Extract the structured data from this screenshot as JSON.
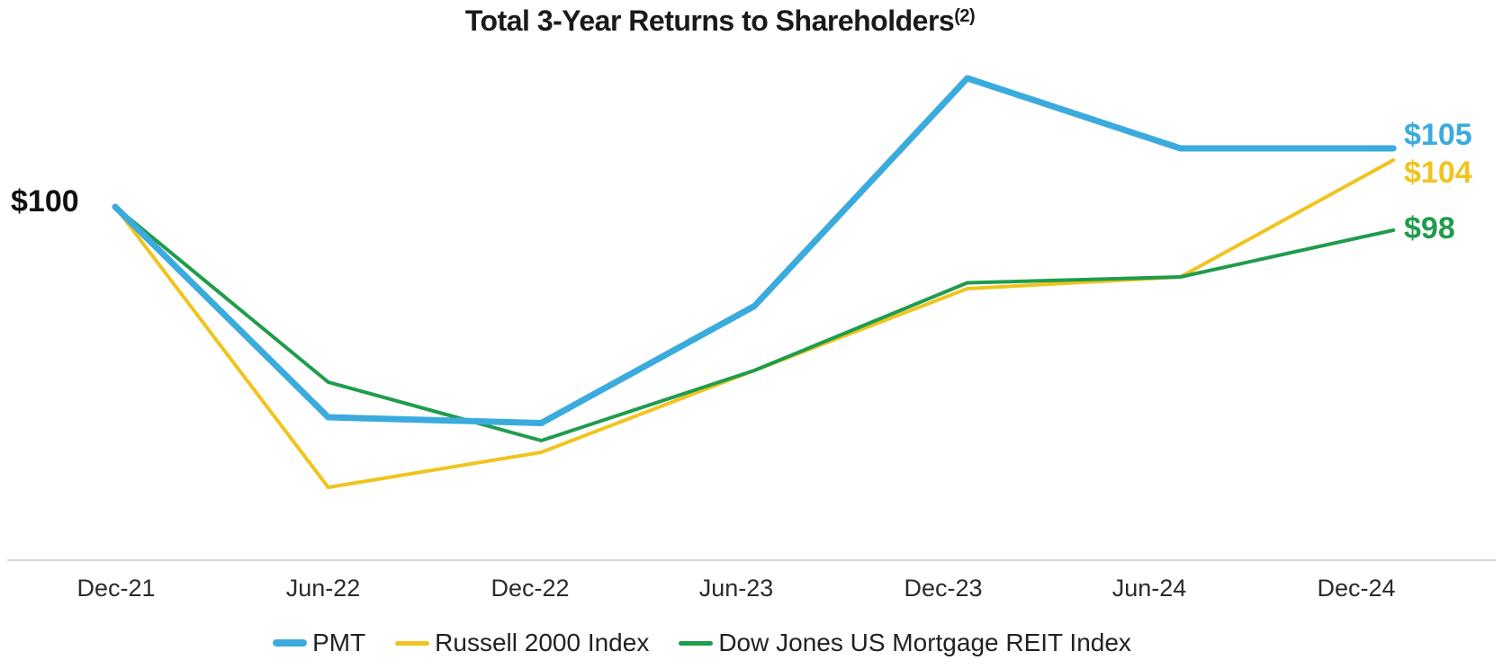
{
  "title": {
    "text": "Total 3-Year Returns to Shareholders",
    "superscript": "(2)"
  },
  "chart_data": {
    "type": "line",
    "title": "Total 3-Year Returns to Shareholders(2)",
    "categories": [
      "Dec-21",
      "Jun-22",
      "Dec-22",
      "Jun-23",
      "Dec-23",
      "Jun-24",
      "Dec-24"
    ],
    "start_label": "$100",
    "baseline_value": 100,
    "series": [
      {
        "name": "PMT",
        "color": "#3BABDE",
        "values": [
          100,
          82,
          81.5,
          91.5,
          111,
          105,
          105
        ],
        "end_label": "$105"
      },
      {
        "name": "Russell 2000 Index",
        "color": "#F0C41E",
        "values": [
          100,
          76,
          79,
          86,
          93,
          94,
          104
        ],
        "end_label": "$104"
      },
      {
        "name": "Dow Jones US Mortgage REIT Index",
        "color": "#1F9C4D",
        "values": [
          100,
          85,
          80,
          86,
          93.5,
          94,
          98
        ],
        "end_label": "$98"
      }
    ],
    "xlabel": "",
    "ylabel": "",
    "grid": "off",
    "y_axis_shown": false,
    "legend_position": "bottom",
    "ylim_implied": [
      74,
      113
    ]
  },
  "axis": {
    "line_color": "#D9D9D9",
    "label_color": "#2B2B2B"
  }
}
